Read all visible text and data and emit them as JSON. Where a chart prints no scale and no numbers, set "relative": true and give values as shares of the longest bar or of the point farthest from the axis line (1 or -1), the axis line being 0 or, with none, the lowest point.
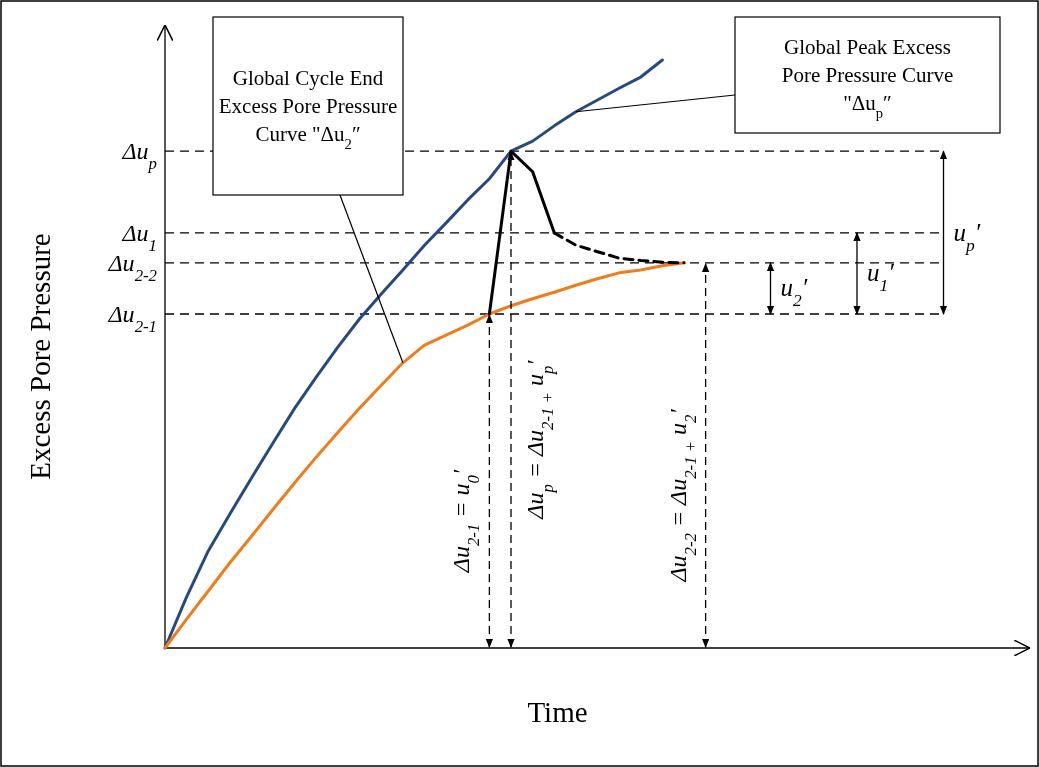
{
  "chart_data": {
    "type": "line",
    "relative": true,
    "xlabel": "Time",
    "ylabel": "Excess Pore Pressure",
    "categories": [
      null,
      null,
      null,
      null,
      null,
      null,
      null,
      null,
      null,
      null,
      null,
      null,
      null,
      null,
      null,
      null,
      null,
      null,
      null,
      null,
      null,
      null,
      null,
      null,
      null,
      null,
      null,
      null,
      null,
      null,
      null,
      null,
      null,
      null,
      null,
      null,
      null,
      null,
      null,
      null,
      null
    ],
    "series": [
      {
        "color": "#264a7f",
        "line_style": "solid",
        "values": [
          0,
          0.087,
          0.165,
          0.228,
          0.289,
          0.349,
          0.408,
          0.461,
          0.512,
          0.56,
          0.602,
          0.643,
          0.685,
          0.723,
          0.762,
          0.798,
          0.845,
          0.862,
          0.888,
          0.912,
          0.932,
          0.952,
          0.971,
          1,
          null,
          null,
          null,
          null,
          null,
          null,
          null,
          null,
          null,
          null,
          null,
          null,
          null,
          null,
          null,
          null,
          null
        ]
      },
      {
        "color": "#f07c1c",
        "line_style": "solid",
        "values": [
          0,
          0.049,
          0.097,
          0.145,
          0.19,
          0.236,
          0.281,
          0.325,
          0.367,
          0.408,
          0.447,
          0.485,
          0.515,
          0.532,
          0.549,
          0.568,
          0.582,
          0.594,
          0.605,
          0.617,
          0.628,
          0.638,
          0.643,
          0.65,
          0.655,
          null,
          null,
          null,
          null,
          null,
          null,
          null,
          null,
          null,
          null,
          null,
          null,
          null,
          null,
          null,
          null
        ]
      },
      {
        "color": "#000000",
        "line_style": "solid",
        "values": [
          null,
          null,
          null,
          null,
          null,
          null,
          null,
          null,
          null,
          null,
          null,
          null,
          null,
          null,
          null,
          0.568,
          0.845,
          0.81,
          0.706,
          null,
          null,
          null,
          null,
          null,
          null,
          null,
          null,
          null,
          null,
          null,
          null,
          null,
          null,
          null,
          null,
          null,
          null,
          null,
          null,
          null,
          null
        ]
      },
      {
        "color": "#000000",
        "line_style": "dashed",
        "values": [
          null,
          null,
          null,
          null,
          null,
          null,
          null,
          null,
          null,
          null,
          null,
          null,
          null,
          null,
          null,
          null,
          null,
          null,
          0.706,
          0.685,
          0.674,
          0.663,
          0.659,
          0.656,
          0.655,
          null,
          null,
          null,
          null,
          null,
          null,
          null,
          null,
          null,
          null,
          null,
          null,
          null,
          null,
          null,
          null
        ]
      }
    ],
    "ref_lines": [
      {
        "axis": "y",
        "value": 0.845,
        "label": "Δu$_{p}$",
        "color": "#000000",
        "line_style": "dashed"
      },
      {
        "axis": "y",
        "value": 0.706,
        "label": "Δu$_{1}$",
        "color": "#000000",
        "line_style": "dashed"
      },
      {
        "axis": "y",
        "value": 0.655,
        "label": "Δu$_{2-2}$",
        "color": "#000000",
        "line_style": "dashed"
      },
      {
        "axis": "y",
        "value": 0.568,
        "label": "Δu$_{2-1}$",
        "color": "#000000",
        "line_style": "dashed"
      }
    ],
    "annotations": [
      "Global Cycle End Excess Pore Pressure Curve \"Δu$_{2}$″",
      "Global Peak  Excess Pore Pressure Curve  \"Δu$_{p}$″",
      "Δu$_{2-1}$ = u$_{0}$′",
      "Δu$_{p}$ = Δu$_{2-1 +}$ u$_{p}$′",
      "Δu$_{2-2}$ = Δu$_{2-1 +}$ u$_{2}$′",
      "u$_{p}$′",
      "u$_{1}$′",
      "u$_{2}$′"
    ]
  }
}
